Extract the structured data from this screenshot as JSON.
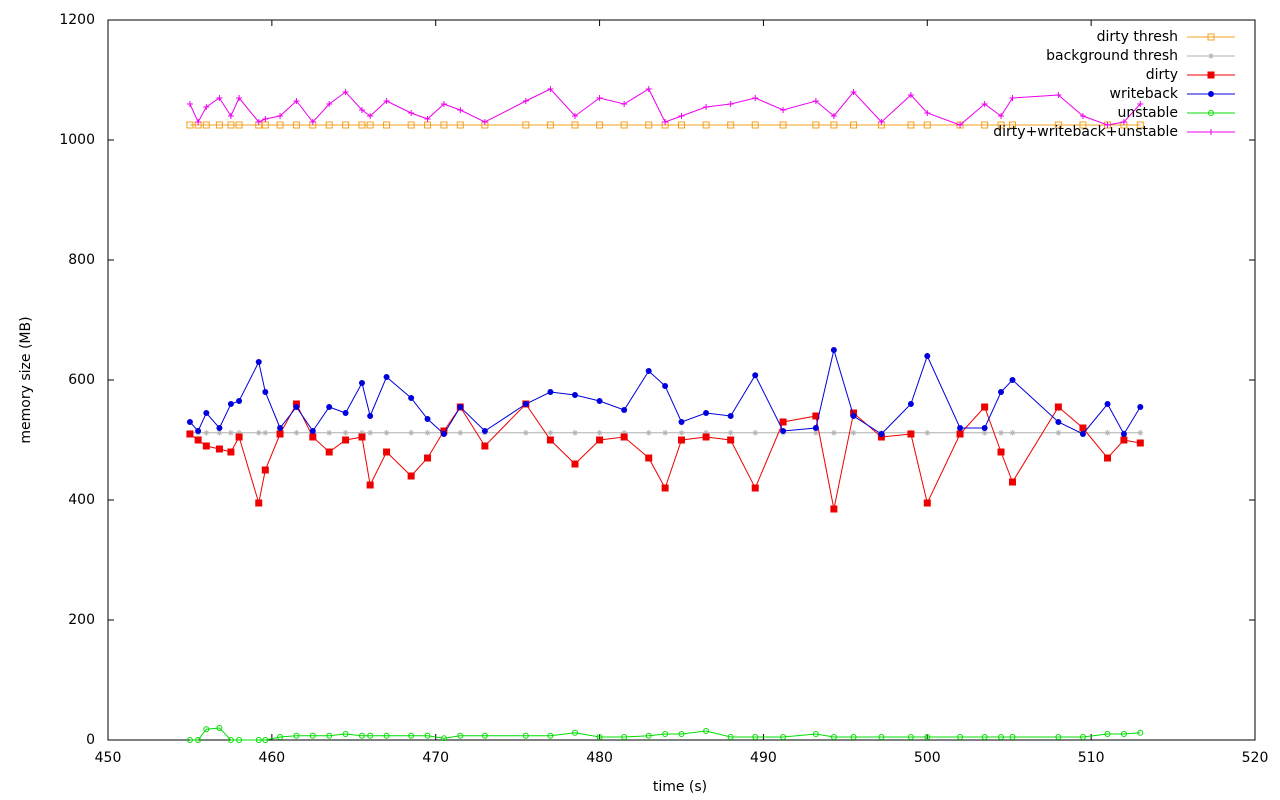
{
  "chart_data": {
    "type": "line",
    "xlabel": "time (s)",
    "ylabel": "memory size (MB)",
    "x": [
      455,
      455.5,
      456,
      456.8,
      457.5,
      458,
      459.2,
      459.6,
      460.5,
      461.5,
      462.5,
      463.5,
      464.5,
      465.5,
      466,
      467,
      468.5,
      469.5,
      470.5,
      471.5,
      473,
      475.5,
      477,
      478.5,
      480,
      481.5,
      483,
      484,
      485,
      486.5,
      488,
      489.5,
      491.2,
      493.2,
      494.3,
      495.5,
      497.2,
      499,
      500,
      502,
      503.5,
      504.5,
      505.2,
      508,
      509.5,
      511,
      512,
      513
    ],
    "xlim": [
      450,
      520
    ],
    "xticks": [
      450,
      460,
      470,
      480,
      490,
      500,
      510,
      520
    ],
    "ylim": [
      0,
      1200
    ],
    "yticks": [
      0,
      200,
      400,
      600,
      800,
      1000,
      1200
    ],
    "grid": false,
    "legend": "top-right",
    "series": [
      {
        "name": "dirty thresh",
        "color": "#f0a020",
        "marker": "square-open",
        "values": [
          1025,
          1025,
          1025,
          1025,
          1025,
          1025,
          1025,
          1025,
          1025,
          1025,
          1025,
          1025,
          1025,
          1025,
          1025,
          1025,
          1025,
          1025,
          1025,
          1025,
          1025,
          1025,
          1025,
          1025,
          1025,
          1025,
          1025,
          1025,
          1025,
          1025,
          1025,
          1025,
          1025,
          1025,
          1025,
          1025,
          1025,
          1025,
          1025,
          1025,
          1025,
          1025,
          1025,
          1025,
          1025,
          1025,
          1025,
          1025
        ]
      },
      {
        "name": "background thresh",
        "color": "#b0b0b0",
        "marker": "star",
        "values": [
          512,
          512,
          512,
          512,
          512,
          512,
          512,
          512,
          512,
          512,
          512,
          512,
          512,
          512,
          512,
          512,
          512,
          512,
          512,
          512,
          512,
          512,
          512,
          512,
          512,
          512,
          512,
          512,
          512,
          512,
          512,
          512,
          512,
          512,
          512,
          512,
          512,
          512,
          512,
          512,
          512,
          512,
          512,
          512,
          512,
          512,
          512,
          512
        ]
      },
      {
        "name": "dirty",
        "color": "#ee0000",
        "marker": "square",
        "values": [
          510,
          500,
          490,
          485,
          480,
          505,
          395,
          450,
          510,
          560,
          505,
          480,
          500,
          505,
          425,
          480,
          440,
          470,
          515,
          555,
          490,
          560,
          500,
          460,
          500,
          505,
          470,
          420,
          500,
          505,
          500,
          420,
          530,
          540,
          385,
          545,
          505,
          510,
          395,
          510,
          555,
          480,
          430,
          555,
          520,
          470,
          500,
          495
        ]
      },
      {
        "name": "writeback",
        "color": "#0000dd",
        "marker": "circle",
        "values": [
          530,
          515,
          545,
          520,
          560,
          565,
          630,
          580,
          520,
          555,
          515,
          555,
          545,
          595,
          540,
          605,
          570,
          535,
          510,
          555,
          515,
          560,
          580,
          575,
          565,
          550,
          615,
          590,
          530,
          545,
          540,
          608,
          515,
          520,
          650,
          540,
          510,
          560,
          640,
          520,
          520,
          580,
          600,
          530,
          510,
          560,
          510,
          555
        ]
      },
      {
        "name": "unstable",
        "color": "#00dd00",
        "marker": "circle-open",
        "values": [
          0,
          0,
          18,
          20,
          0,
          0,
          0,
          0,
          5,
          7,
          7,
          7,
          10,
          7,
          7,
          7,
          7,
          7,
          3,
          7,
          7,
          7,
          7,
          12,
          5,
          5,
          7,
          10,
          10,
          15,
          5,
          5,
          5,
          10,
          5,
          5,
          5,
          5,
          5,
          5,
          5,
          5,
          5,
          5,
          5,
          10,
          10,
          12
        ]
      },
      {
        "name": "dirty+writeback+unstable",
        "color": "#ee00ee",
        "marker": "plus",
        "values": [
          1060,
          1030,
          1055,
          1070,
          1040,
          1070,
          1030,
          1035,
          1040,
          1065,
          1030,
          1060,
          1080,
          1050,
          1040,
          1065,
          1045,
          1035,
          1060,
          1050,
          1030,
          1065,
          1085,
          1040,
          1070,
          1060,
          1085,
          1030,
          1040,
          1055,
          1060,
          1070,
          1050,
          1065,
          1040,
          1080,
          1030,
          1075,
          1045,
          1025,
          1060,
          1040,
          1070,
          1075,
          1040,
          1025,
          1030,
          1060
        ]
      }
    ]
  }
}
